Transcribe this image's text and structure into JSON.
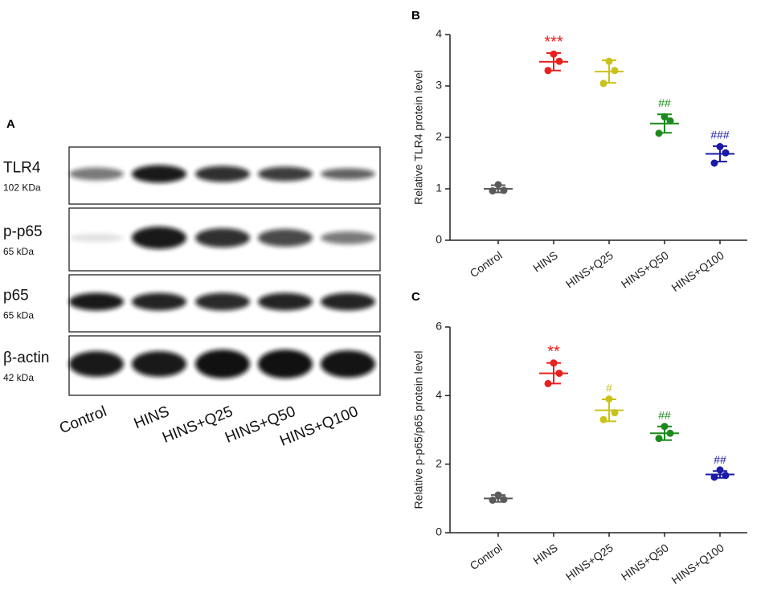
{
  "panel_a": {
    "panel": "A",
    "rows": [
      {
        "protein": "TLR4",
        "size": "102 KDa"
      },
      {
        "protein": "p-p65",
        "size": "65 kDa"
      },
      {
        "protein": "p65",
        "size": "65 kDa"
      },
      {
        "protein": "β-actin",
        "size": "42 kDa"
      }
    ],
    "lanes": [
      "Control",
      "HINS",
      "HINS+Q25",
      "HINS+Q50",
      "HINS+Q100"
    ]
  },
  "chart_data": [
    {
      "type": "dotplot",
      "panel": "B",
      "y_label": "Relative TLR4 protein level",
      "categories": [
        "Control",
        "HINS",
        "HINS+Q25",
        "HINS+Q50",
        "HINS+Q100"
      ],
      "colors": [
        "#5a5a5a",
        "#e8201e",
        "#c9c21c",
        "#1c8a1c",
        "#1a1aa8"
      ],
      "points": [
        [
          1.08,
          0.96,
          0.97
        ],
        [
          3.62,
          3.3,
          3.48
        ],
        [
          3.48,
          3.05,
          3.3
        ],
        [
          2.4,
          2.08,
          2.32
        ],
        [
          1.82,
          1.5,
          1.7
        ]
      ],
      "means": [
        1.0,
        3.47,
        3.28,
        2.27,
        1.68
      ],
      "sds": [
        0.07,
        0.17,
        0.22,
        0.18,
        0.15
      ],
      "annotations": [
        null,
        "***",
        null,
        "##",
        "###"
      ],
      "ylim": [
        0,
        4
      ],
      "yticks": [
        0,
        1,
        2,
        3,
        4
      ]
    },
    {
      "type": "dotplot",
      "panel": "C",
      "y_label": "Relative p-p65/p65 protein level",
      "categories": [
        "Control",
        "HINS",
        "HINS+Q25",
        "HINS+Q50",
        "HINS+Q100"
      ],
      "colors": [
        "#5a5a5a",
        "#e8201e",
        "#c9c21c",
        "#1c8a1c",
        "#1a1aa8"
      ],
      "points": [
        [
          1.1,
          0.95,
          0.97
        ],
        [
          4.95,
          4.35,
          4.65
        ],
        [
          3.9,
          3.3,
          3.5
        ],
        [
          3.1,
          2.75,
          2.9
        ],
        [
          1.83,
          1.62,
          1.67
        ]
      ],
      "means": [
        1.0,
        4.65,
        3.57,
        2.9,
        1.7
      ],
      "sds": [
        0.1,
        0.3,
        0.32,
        0.2,
        0.1
      ],
      "annotations": [
        null,
        "**",
        "#",
        "##",
        "##"
      ],
      "ylim": [
        0,
        6
      ],
      "yticks": [
        0,
        2,
        4,
        6
      ]
    }
  ]
}
